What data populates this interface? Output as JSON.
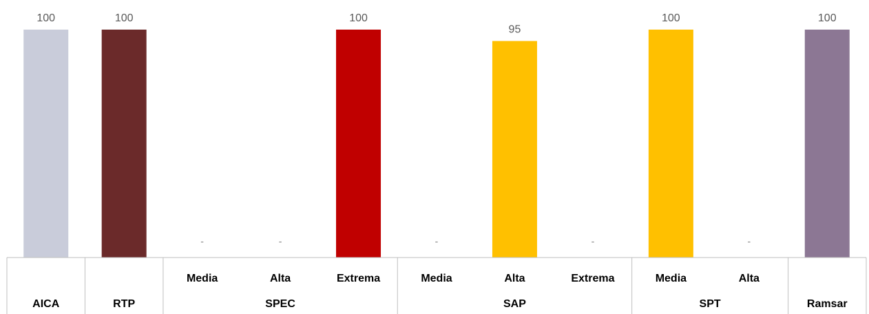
{
  "chart_data": {
    "type": "bar",
    "title": "",
    "xlabel": "",
    "ylabel": "",
    "ylim": [
      0,
      100
    ],
    "grid": false,
    "legend": "none",
    "categories": [
      {
        "label": "",
        "group": "AICA"
      },
      {
        "label": "",
        "group": "RTP"
      },
      {
        "label": "Media",
        "group": "SPEC"
      },
      {
        "label": "Alta",
        "group": "SPEC"
      },
      {
        "label": "Extrema",
        "group": "SPEC"
      },
      {
        "label": "Media",
        "group": "SAP"
      },
      {
        "label": "Alta",
        "group": "SAP"
      },
      {
        "label": "Extrema",
        "group": "SAP"
      },
      {
        "label": "Media",
        "group": "SPT"
      },
      {
        "label": "Alta",
        "group": "SPT"
      },
      {
        "label": "",
        "group": "Ramsar"
      }
    ],
    "groups": [
      "AICA",
      "RTP",
      "SPEC",
      "SAP",
      "SPT",
      "Ramsar"
    ],
    "values": [
      100,
      100,
      null,
      null,
      100,
      null,
      95,
      null,
      100,
      null,
      100
    ],
    "value_labels": [
      "100",
      "100",
      "-",
      "-",
      "100",
      "-",
      "95",
      "-",
      "100",
      "-",
      "100"
    ],
    "colors": [
      "#C9CCDA",
      "#6B2A2A",
      null,
      null,
      "#C00000",
      null,
      "#FFC000",
      null,
      "#FFC000",
      null,
      "#8C7794"
    ]
  }
}
